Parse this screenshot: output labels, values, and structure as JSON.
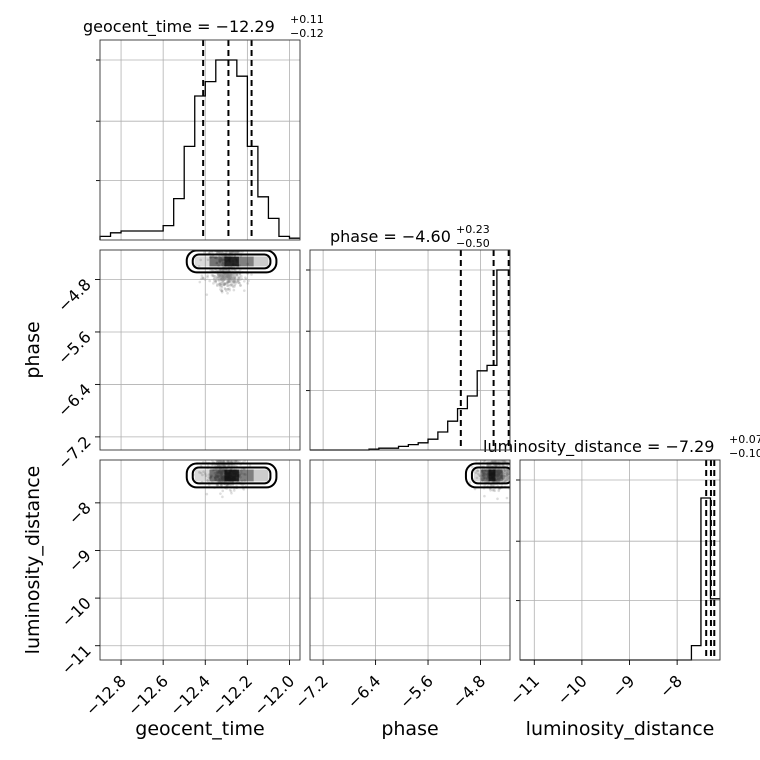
{
  "chart_data": {
    "type": "corner",
    "parameters": [
      {
        "name": "geocent_time",
        "range": [
          -12.9,
          -11.95
        ],
        "ticks": [
          -12.8,
          -12.6,
          -12.4,
          -12.2,
          -12.0
        ],
        "tick_labels": [
          "−12.8",
          "−12.6",
          "−12.4",
          "−12.2",
          "−12.0"
        ],
        "title_text": "geocent_time = −12.29",
        "title_plus": "+0.11",
        "title_minus": "−0.12",
        "quantiles": [
          -12.41,
          -12.29,
          -12.18
        ],
        "histogram": {
          "bin_edges": [
            -12.9,
            -12.85,
            -12.8,
            -12.75,
            -12.7,
            -12.65,
            -12.6,
            -12.55,
            -12.5,
            -12.45,
            -12.4,
            -12.35,
            -12.3,
            -12.25,
            -12.2,
            -12.15,
            -12.1,
            -12.05,
            -12.0,
            -11.95
          ],
          "counts": [
            0.02,
            0.04,
            0.05,
            0.05,
            0.05,
            0.05,
            0.08,
            0.23,
            0.52,
            0.8,
            0.88,
            1.0,
            1.0,
            0.91,
            0.52,
            0.24,
            0.12,
            0.02,
            0.01
          ]
        }
      },
      {
        "name": "phase",
        "range": [
          -7.4,
          -4.35
        ],
        "ticks": [
          -7.2,
          -6.4,
          -5.6,
          -4.8
        ],
        "tick_labels": [
          "−7.2",
          "−6.4",
          "−5.6",
          "−4.8"
        ],
        "title_text": "phase = −4.60",
        "title_plus": "+0.23",
        "title_minus": "−0.50",
        "quantiles": [
          -5.1,
          -4.6,
          -4.37
        ],
        "histogram": {
          "bin_edges": [
            -7.4,
            -7.25,
            -7.1,
            -6.95,
            -6.8,
            -6.65,
            -6.5,
            -6.35,
            -6.2,
            -6.05,
            -5.9,
            -5.75,
            -5.6,
            -5.45,
            -5.3,
            -5.15,
            -5.0,
            -4.85,
            -4.7,
            -4.55,
            -4.4,
            -4.35
          ],
          "counts": [
            0,
            0,
            0,
            0,
            0,
            0,
            0.005,
            0.01,
            0.01,
            0.02,
            0.03,
            0.04,
            0.06,
            0.1,
            0.16,
            0.23,
            0.3,
            0.44,
            0.47,
            1.0,
            1.0
          ]
        }
      },
      {
        "name": "luminosity_distance",
        "range": [
          -11.3,
          -7.1
        ],
        "ticks": [
          -11,
          -10,
          -9,
          -8
        ],
        "tick_labels": [
          "−11",
          "−10",
          "−9",
          "−8"
        ],
        "title_text": "luminosity_distance = −7.29",
        "title_plus": "+0.07",
        "title_minus": "−0.10",
        "quantiles": [
          -7.39,
          -7.29,
          -7.22
        ],
        "histogram": {
          "bin_edges": [
            -11.3,
            -11.1,
            -10.9,
            -10.7,
            -10.5,
            -10.3,
            -10.1,
            -9.9,
            -9.7,
            -9.5,
            -9.3,
            -9.1,
            -8.9,
            -8.7,
            -8.5,
            -8.3,
            -8.1,
            -7.9,
            -7.7,
            -7.5,
            -7.3,
            -7.1
          ],
          "counts": [
            0,
            0,
            0,
            0,
            0,
            0,
            0,
            0,
            0,
            0,
            0,
            0,
            0,
            0,
            0,
            0,
            0,
            0,
            0.08,
            0.9,
            0.34
          ]
        }
      }
    ],
    "pairs": [
      {
        "x": "geocent_time",
        "y": "phase",
        "contour_centroid": [
          -12.3,
          -4.75
        ],
        "dense_region": [
          [
            -12.45,
            -4.6
          ],
          [
            -12.1,
            -4.45
          ]
        ]
      },
      {
        "x": "geocent_time",
        "y": "luminosity_distance",
        "contour_centroid": [
          -12.3,
          -7.45
        ],
        "dense_region": [
          [
            -12.45,
            -7.55
          ],
          [
            -12.1,
            -7.3
          ]
        ]
      },
      {
        "x": "phase",
        "y": "luminosity_distance",
        "contour_centroid": [
          -4.55,
          -7.4
        ],
        "dense_region": [
          [
            -4.9,
            -7.55
          ],
          [
            -4.35,
            -7.3
          ]
        ]
      }
    ],
    "grid": true
  }
}
